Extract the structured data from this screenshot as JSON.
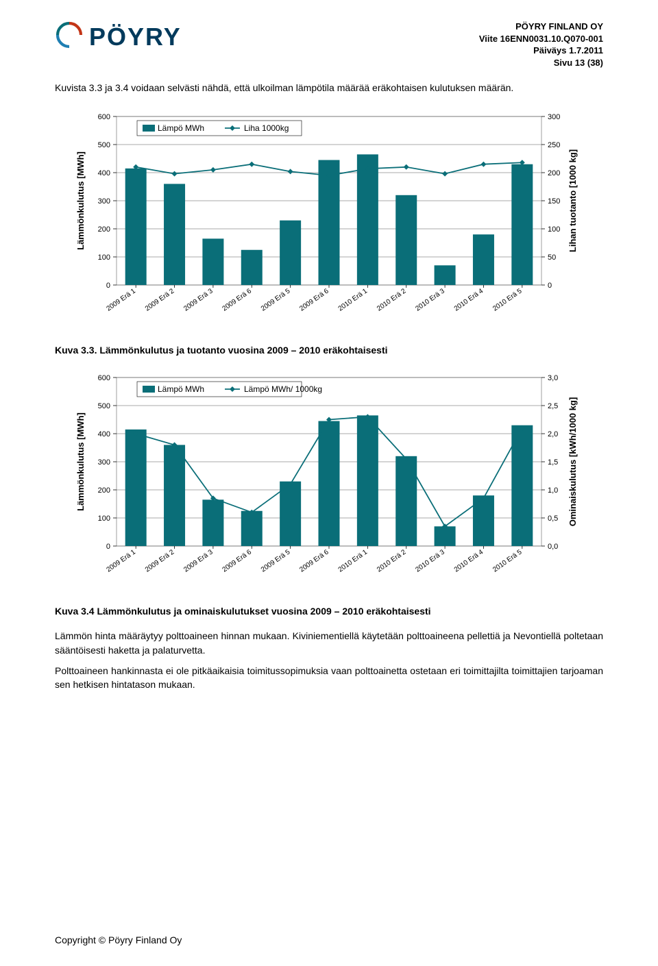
{
  "header": {
    "logo_name": "PÖYRY",
    "company": "PÖYRY FINLAND OY",
    "ref": "Viite 16ENN0031.10.Q070-001",
    "date": "Päiväys 1.7.2011",
    "page": "Sivu 13 (38)"
  },
  "intro_para": "Kuvista 3.3 ja 3.4 voidaan selvästi nähdä, että ulkoilman lämpötila määrää eräkohtaisen kulutuksen määrän.",
  "chart1": {
    "type": "bar+line",
    "categories": [
      "2009 Erä 1",
      "2009 Erä 2",
      "2009 Erä 3",
      "2009 Erä 6",
      "2009 Erä 5",
      "2009 Erä 6",
      "2010 Erä 1",
      "2010 Erä 2",
      "2010 Erä 3",
      "2010 Erä 4",
      "2010 Erä 5"
    ],
    "bar_values": [
      415,
      360,
      165,
      125,
      230,
      445,
      465,
      320,
      70,
      180,
      430
    ],
    "line_values": [
      210,
      198,
      205,
      215,
      202,
      195,
      207,
      210,
      198,
      215,
      218
    ],
    "bar_color": "#0a6e78",
    "line_color": "#0a6e78",
    "marker_color": "#0a6e78",
    "plot_bg": "#ffffff",
    "grid_color": "#555555",
    "border_color": "#888888",
    "y1_label": "Lämmönkulutus [MWh]",
    "y2_label": "Lihan tuotanto [1000 kg]",
    "y1_max": 600,
    "y1_step": 100,
    "y2_max": 300,
    "y2_step": 50,
    "legend": [
      {
        "type": "bar",
        "label": "Lämpö MWh"
      },
      {
        "type": "line",
        "label": "Liha 1000kg"
      }
    ],
    "axis_label_fontsize": 13,
    "tick_fontsize": 11
  },
  "caption1": "Kuva 3.3. Lämmönkulutus ja tuotanto vuosina 2009 – 2010 eräkohtaisesti",
  "chart2": {
    "type": "bar+line",
    "categories": [
      "2009 Erä 1",
      "2009 Erä 2",
      "2009 Erä 3",
      "2009 Erä 6",
      "2009 Erä 5",
      "2009 Erä 6",
      "2010 Erä 1",
      "2010 Erä 2",
      "2010 Erä 3",
      "2010 Erä 4",
      "2010 Erä 5"
    ],
    "bar_values": [
      415,
      360,
      165,
      125,
      230,
      445,
      465,
      320,
      70,
      180,
      430
    ],
    "line_values": [
      2.0,
      1.8,
      0.85,
      0.6,
      1.1,
      2.25,
      2.3,
      1.55,
      0.35,
      0.85,
      2.1
    ],
    "bar_color": "#0a6e78",
    "line_color": "#0a6e78",
    "marker_color": "#0a6e78",
    "plot_bg": "#ffffff",
    "grid_color": "#555555",
    "border_color": "#888888",
    "y1_label": "Lämmönkulutus [MWh]",
    "y2_label": "Ominaiskulutus [kWh/1000 kg]",
    "y1_max": 600,
    "y1_step": 100,
    "y2_max": 3.0,
    "y2_step": 0.5,
    "legend": [
      {
        "type": "bar",
        "label": "Lämpö MWh"
      },
      {
        "type": "line",
        "label": "Lämpö MWh/ 1000kg"
      }
    ],
    "axis_label_fontsize": 13,
    "tick_fontsize": 11
  },
  "caption2": "Kuva 3.4 Lämmönkulutus ja ominaiskulutukset vuosina 2009 – 2010 eräkohtaisesti",
  "para2": "Lämmön hinta määräytyy polttoaineen hinnan mukaan. Kiviniementiellä käytetään polttoaineena pellettiä ja Nevontiellä poltetaan sääntöisesti haketta ja palaturvetta.",
  "para3": "Polttoaineen hankinnasta ei ole pitkäaikaisia toimitussopimuksia vaan polttoainetta ostetaan eri toimittajilta toimittajien tarjoaman sen hetkisen hintatason mukaan.",
  "footer": "Copyright © Pöyry Finland Oy"
}
